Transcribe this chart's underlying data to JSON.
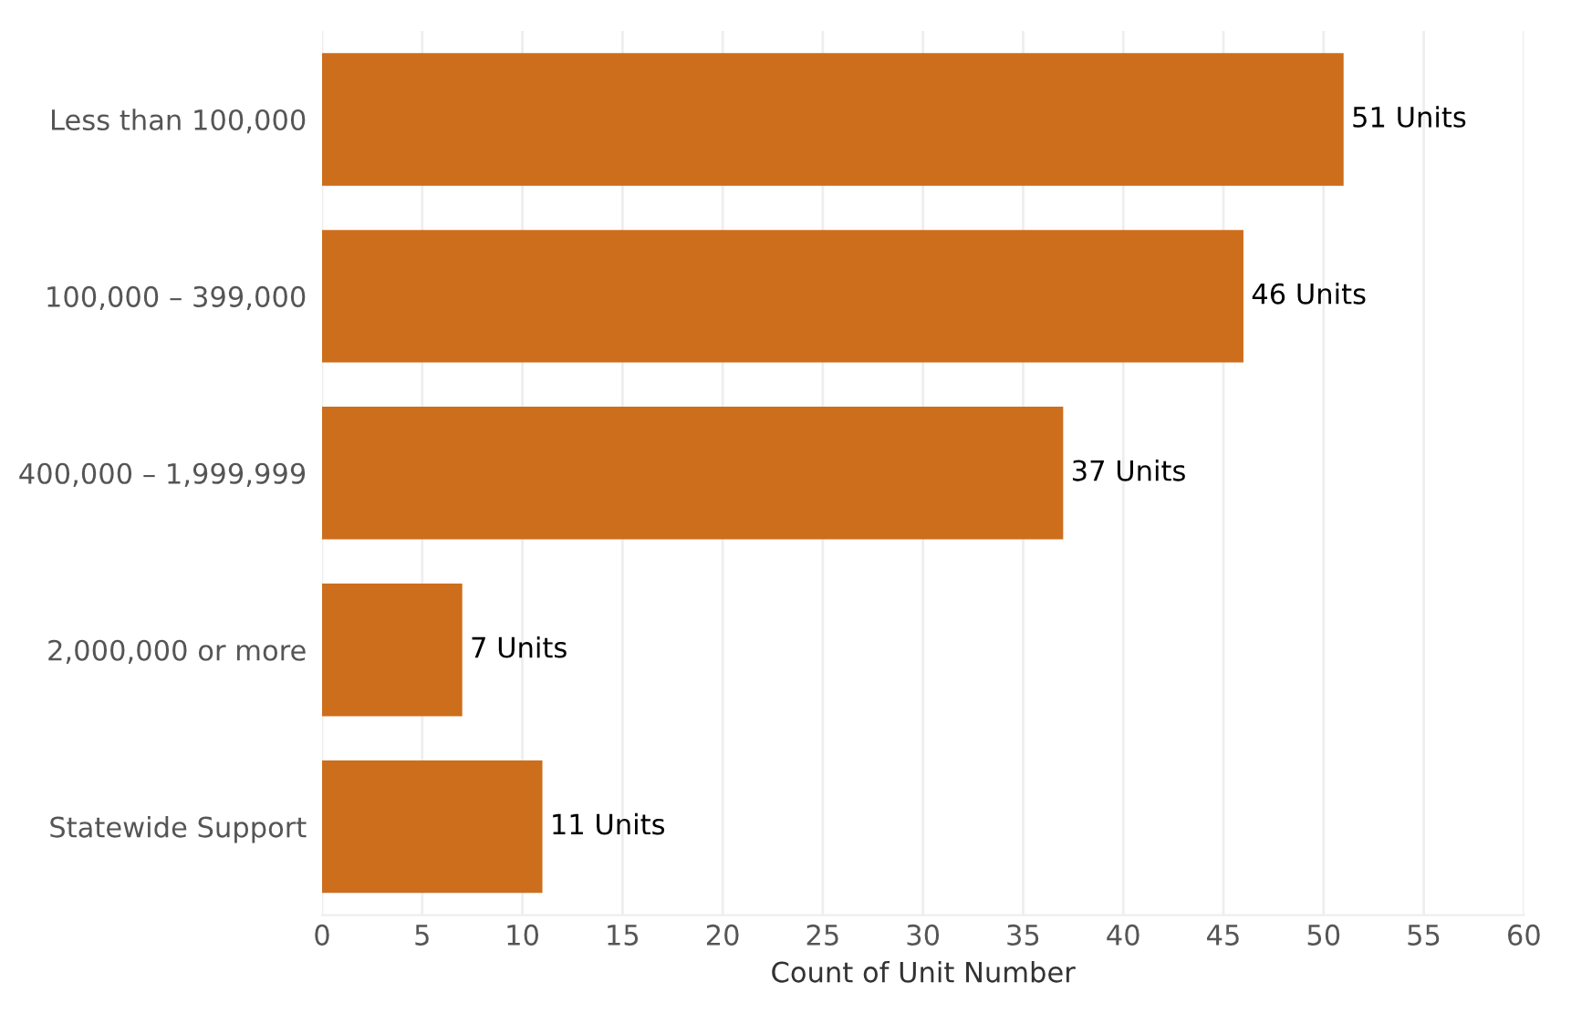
{
  "chart_data": {
    "type": "bar",
    "orientation": "horizontal",
    "xlabel": "Count of Unit Number",
    "categories": [
      "Less than 100,000",
      "100,000 – 399,000",
      "400,000 – 1,999,999",
      "2,000,000 or more",
      "Statewide Support"
    ],
    "values": [
      51,
      46,
      37,
      7,
      11
    ],
    "color": "#cd6e1c",
    "value_labels": [
      "51 Units",
      "46 Units",
      "37 Units",
      "7 Units",
      "11 Units"
    ],
    "xlim": [
      0,
      60
    ],
    "xticks": [
      0,
      5,
      10,
      15,
      20,
      25,
      30,
      35,
      40,
      45,
      50,
      55,
      60
    ],
    "grid": "x"
  }
}
